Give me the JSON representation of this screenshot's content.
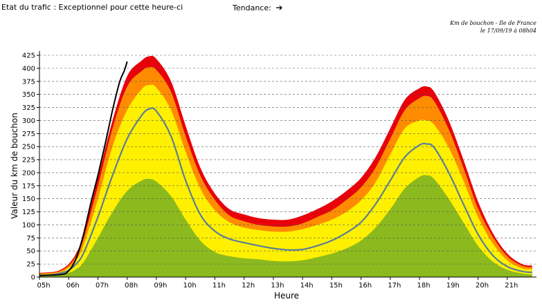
{
  "header": {
    "status_label": "Etat du trafic :",
    "status_value": "Exceptionnel pour cette heure-ci",
    "trend_label": "Tendance:",
    "trend_icon": "right-arrow-icon"
  },
  "caption": {
    "line1": "Km de bouchon - Ile de France",
    "line2": "le 17/09/19 à 08h04"
  },
  "chart_data": {
    "type": "area",
    "xlabel": "Heure",
    "ylabel": "Valeur du  km de bouchon",
    "xlim": [
      5,
      22
    ],
    "ylim": [
      0,
      425
    ],
    "yticks": [
      0,
      25,
      50,
      75,
      100,
      125,
      150,
      175,
      200,
      225,
      250,
      275,
      300,
      325,
      350,
      375,
      400,
      425
    ],
    "xtick_labels": [
      "05h",
      "06h",
      "07h",
      "08h",
      "09h",
      "10h",
      "11h",
      "12h",
      "13h",
      "14h",
      "15h",
      "16h",
      "17h",
      "18h",
      "19h",
      "20h",
      "21h"
    ],
    "grid": "horizontal dashed",
    "x": [
      5.0,
      5.5,
      5.75,
      6.0,
      6.25,
      6.5,
      7.0,
      7.5,
      8.0,
      8.5,
      8.75,
      9.0,
      9.5,
      10.0,
      10.5,
      11.0,
      11.5,
      12.0,
      12.5,
      13.0,
      13.5,
      14.0,
      14.5,
      15.0,
      15.5,
      16.0,
      16.5,
      17.0,
      17.5,
      18.0,
      18.25,
      18.5,
      19.0,
      19.5,
      20.0,
      20.5,
      21.0,
      21.5,
      21.85
    ],
    "series": [
      {
        "role": "band",
        "color": "#e8000b",
        "values": [
          8,
          10,
          15,
          25,
          45,
          80,
          190,
          300,
          385,
          415,
          423,
          418,
          375,
          290,
          210,
          160,
          130,
          120,
          113,
          110,
          110,
          118,
          130,
          145,
          165,
          190,
          230,
          285,
          340,
          362,
          365,
          355,
          300,
          225,
          145,
          85,
          45,
          25,
          22
        ]
      },
      {
        "role": "band",
        "color": "#ff8c00",
        "values": [
          7,
          9,
          13,
          22,
          40,
          72,
          175,
          285,
          365,
          395,
          402,
          397,
          355,
          270,
          195,
          148,
          118,
          107,
          100,
          97,
          97,
          103,
          115,
          128,
          148,
          172,
          210,
          265,
          320,
          343,
          347,
          337,
          283,
          210,
          132,
          78,
          40,
          22,
          19
        ]
      },
      {
        "role": "band",
        "color": "#fff000",
        "values": [
          5,
          7,
          10,
          18,
          32,
          60,
          150,
          250,
          320,
          360,
          368,
          363,
          320,
          240,
          170,
          128,
          105,
          95,
          90,
          87,
          87,
          92,
          100,
          110,
          125,
          147,
          182,
          235,
          285,
          300,
          300,
          292,
          248,
          185,
          115,
          65,
          32,
          17,
          15
        ]
      },
      {
        "role": "band",
        "color": "#8cba1e",
        "values": [
          2,
          3,
          5,
          8,
          15,
          28,
          75,
          125,
          165,
          185,
          188,
          183,
          155,
          110,
          70,
          48,
          40,
          36,
          34,
          31,
          30,
          32,
          38,
          45,
          55,
          70,
          95,
          130,
          170,
          192,
          195,
          188,
          150,
          105,
          60,
          30,
          14,
          7,
          5
        ]
      },
      {
        "role": "median",
        "color": "#5a7e96",
        "values": [
          3,
          5,
          8,
          13,
          25,
          45,
          115,
          195,
          265,
          310,
          322,
          318,
          270,
          185,
          120,
          88,
          73,
          66,
          60,
          55,
          52,
          53,
          60,
          70,
          85,
          105,
          140,
          185,
          230,
          253,
          255,
          248,
          200,
          140,
          82,
          42,
          20,
          11,
          9
        ]
      },
      {
        "role": "today",
        "color": "#000000",
        "x": [
          5.0,
          5.75,
          6.0,
          6.25,
          6.5,
          6.75,
          7.0,
          7.25,
          7.5,
          7.75,
          7.9,
          8.0
        ],
        "values": [
          3,
          5,
          12,
          35,
          80,
          140,
          195,
          255,
          320,
          375,
          395,
          413
        ]
      }
    ]
  }
}
